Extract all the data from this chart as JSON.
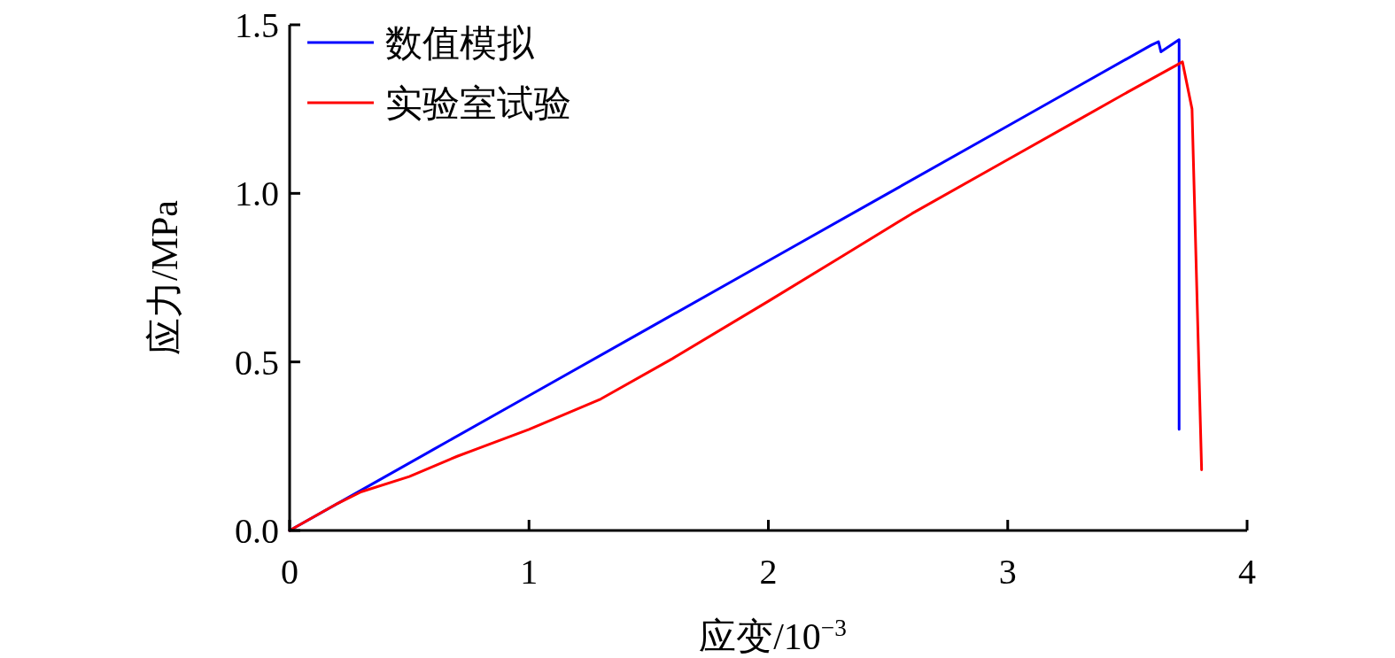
{
  "chart_data": {
    "type": "line",
    "xlabel": "应变/10$^{−3}$",
    "ylabel": "应力/MPa",
    "xlim": [
      0,
      4
    ],
    "ylim": [
      0,
      1.5
    ],
    "xticks": [
      0,
      1,
      2,
      3,
      4
    ],
    "yticks": [
      {
        "value": 0,
        "label": "0.0"
      },
      {
        "value": 0.5,
        "label": "0.5"
      },
      {
        "value": 1,
        "label": "1.0"
      },
      {
        "value": 1.5,
        "label": "1.5"
      }
    ],
    "grid": false,
    "legend": "top left",
    "marker": "none",
    "line_style": "solid",
    "series": [
      {
        "name": "数值模拟",
        "color": "#0000ff",
        "x": [
          0,
          0.3,
          0.6,
          1.0,
          1.5,
          2.0,
          2.5,
          3.0,
          3.3,
          3.6,
          3.63,
          3.64,
          3.716,
          3.716
        ],
        "values": [
          0,
          0.12,
          0.24,
          0.4,
          0.6,
          0.8,
          1.0,
          1.2,
          1.32,
          1.44,
          1.45,
          1.42,
          1.456,
          0.3
        ]
      },
      {
        "name": "实验室试验",
        "color": "#ff0000",
        "x": [
          0,
          0.2,
          0.3,
          0.5,
          0.7,
          1.0,
          1.3,
          1.6,
          2.0,
          2.3,
          2.6,
          3.0,
          3.3,
          3.5,
          3.73,
          3.77,
          3.81
        ],
        "values": [
          0,
          0.08,
          0.115,
          0.16,
          0.22,
          0.3,
          0.39,
          0.51,
          0.68,
          0.81,
          0.94,
          1.1,
          1.22,
          1.3,
          1.39,
          1.25,
          0.18
        ]
      }
    ]
  }
}
